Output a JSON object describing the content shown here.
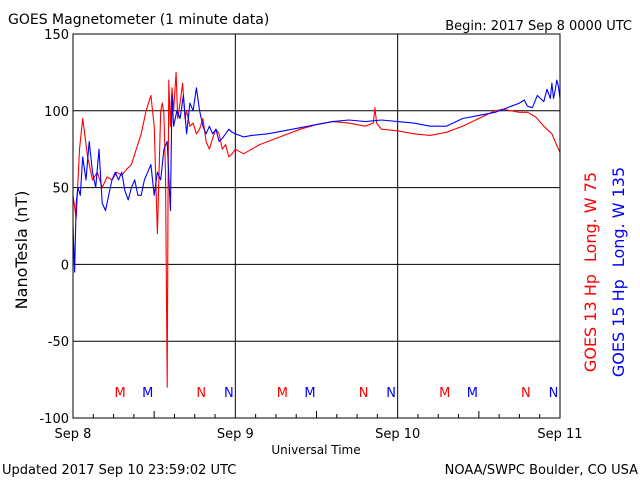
{
  "header": {
    "title": "GOES Magnetometer (1 minute data)",
    "begin": "Begin:  2017 Sep 8 0000 UTC"
  },
  "footer": {
    "updated": "Updated 2017 Sep 10 23:59:02 UTC",
    "credit": "NOAA/SWPC Boulder, CO USA"
  },
  "colors": {
    "goes13": "#ff0000",
    "goes15": "#0000ff",
    "axis": "#000000"
  },
  "chart_data": {
    "type": "line",
    "title": "GOES Magnetometer (1 minute data)",
    "xlabel": "Universal Time",
    "ylabel": "NanoTesla (nT)",
    "xlim": [
      0,
      3
    ],
    "ylim": [
      -100,
      150
    ],
    "grid": true,
    "x_ticks": [
      {
        "x": 0,
        "label": "Sep 8"
      },
      {
        "x": 1,
        "label": "Sep 9"
      },
      {
        "x": 2,
        "label": "Sep 10"
      },
      {
        "x": 3,
        "label": "Sep 11"
      }
    ],
    "y_ticks": [
      150,
      100,
      50,
      0,
      -50,
      -100
    ],
    "legend": {
      "placement": "right",
      "entries": [
        {
          "series": "GOES 13",
          "parts": [
            "GOES 13 Hp",
            "Long. W 75"
          ],
          "color": "#ff0000"
        },
        {
          "series": "GOES 15",
          "parts": [
            "GOES 15 Hp",
            "Long. W 135"
          ],
          "color": "#0000ff"
        }
      ]
    },
    "mn_markers": [
      {
        "x": 0.29,
        "label": "M",
        "series": "GOES 13"
      },
      {
        "x": 0.46,
        "label": "M",
        "series": "GOES 15"
      },
      {
        "x": 0.79,
        "label": "N",
        "series": "GOES 13"
      },
      {
        "x": 0.96,
        "label": "N",
        "series": "GOES 15"
      },
      {
        "x": 1.29,
        "label": "M",
        "series": "GOES 13"
      },
      {
        "x": 1.46,
        "label": "M",
        "series": "GOES 15"
      },
      {
        "x": 1.79,
        "label": "N",
        "series": "GOES 13"
      },
      {
        "x": 1.96,
        "label": "N",
        "series": "GOES 15"
      },
      {
        "x": 2.29,
        "label": "M",
        "series": "GOES 13"
      },
      {
        "x": 2.46,
        "label": "M",
        "series": "GOES 15"
      },
      {
        "x": 2.79,
        "label": "N",
        "series": "GOES 13"
      },
      {
        "x": 2.96,
        "label": "N",
        "series": "GOES 15"
      }
    ],
    "series": [
      {
        "name": "GOES 13",
        "color": "#ff0000",
        "x": [
          0.0,
          0.02,
          0.04,
          0.06,
          0.09,
          0.12,
          0.15,
          0.18,
          0.21,
          0.24,
          0.27,
          0.3,
          0.33,
          0.36,
          0.39,
          0.42,
          0.45,
          0.48,
          0.5,
          0.52,
          0.54,
          0.55,
          0.56,
          0.57,
          0.58,
          0.585,
          0.59,
          0.6,
          0.61,
          0.62,
          0.635,
          0.645,
          0.66,
          0.675,
          0.69,
          0.7,
          0.72,
          0.74,
          0.76,
          0.78,
          0.8,
          0.82,
          0.84,
          0.86,
          0.88,
          0.9,
          0.92,
          0.94,
          0.96,
          0.98,
          1.0,
          1.05,
          1.1,
          1.15,
          1.2,
          1.3,
          1.4,
          1.5,
          1.6,
          1.7,
          1.8,
          1.85,
          1.86,
          1.87,
          1.9,
          2.0,
          2.1,
          2.2,
          2.3,
          2.4,
          2.5,
          2.6,
          2.65,
          2.7,
          2.75,
          2.8,
          2.85,
          2.9,
          2.95,
          2.97,
          3.0
        ],
        "values": [
          45,
          30,
          75,
          95,
          70,
          55,
          60,
          50,
          57,
          55,
          60,
          58,
          62,
          65,
          75,
          85,
          100,
          110,
          90,
          20,
          100,
          105,
          98,
          60,
          -80,
          40,
          120,
          90,
          115,
          100,
          125,
          95,
          105,
          118,
          95,
          100,
          90,
          92,
          85,
          88,
          95,
          80,
          75,
          82,
          88,
          85,
          75,
          78,
          70,
          72,
          75,
          72,
          75,
          78,
          80,
          84,
          88,
          91,
          93,
          92,
          90,
          92,
          102,
          92,
          88,
          87,
          85,
          84,
          86,
          90,
          95,
          100,
          101,
          100,
          99,
          99,
          96,
          90,
          85,
          80,
          73
        ]
      },
      {
        "name": "GOES 15",
        "color": "#0000ff",
        "x": [
          0.0,
          0.01,
          0.02,
          0.03,
          0.045,
          0.06,
          0.08,
          0.1,
          0.12,
          0.14,
          0.16,
          0.18,
          0.2,
          0.22,
          0.24,
          0.26,
          0.28,
          0.3,
          0.32,
          0.34,
          0.36,
          0.38,
          0.4,
          0.42,
          0.44,
          0.46,
          0.48,
          0.5,
          0.52,
          0.54,
          0.56,
          0.58,
          0.6,
          0.61,
          0.62,
          0.64,
          0.66,
          0.68,
          0.7,
          0.72,
          0.74,
          0.76,
          0.78,
          0.8,
          0.82,
          0.84,
          0.86,
          0.88,
          0.9,
          0.92,
          0.94,
          0.96,
          0.98,
          1.0,
          1.05,
          1.1,
          1.2,
          1.3,
          1.4,
          1.5,
          1.6,
          1.7,
          1.8,
          1.9,
          2.0,
          2.1,
          2.2,
          2.3,
          2.4,
          2.5,
          2.6,
          2.7,
          2.75,
          2.78,
          2.8,
          2.83,
          2.86,
          2.88,
          2.9,
          2.92,
          2.94,
          2.95,
          2.96,
          2.97,
          2.98,
          2.99,
          3.0
        ],
        "values": [
          25,
          -5,
          40,
          50,
          45,
          70,
          55,
          80,
          60,
          50,
          75,
          40,
          35,
          45,
          55,
          60,
          55,
          60,
          48,
          42,
          50,
          55,
          45,
          45,
          55,
          60,
          65,
          45,
          60,
          55,
          75,
          80,
          35,
          110,
          90,
          100,
          95,
          110,
          85,
          105,
          100,
          115,
          100,
          90,
          85,
          90,
          85,
          88,
          80,
          82,
          85,
          88,
          86,
          85,
          83,
          84,
          85,
          87,
          89,
          91,
          93,
          94,
          93,
          94,
          93,
          92,
          90,
          90,
          95,
          97,
          99,
          103,
          105,
          107,
          103,
          102,
          110,
          108,
          106,
          114,
          108,
          118,
          108,
          113,
          120,
          116,
          108
        ]
      }
    ]
  }
}
